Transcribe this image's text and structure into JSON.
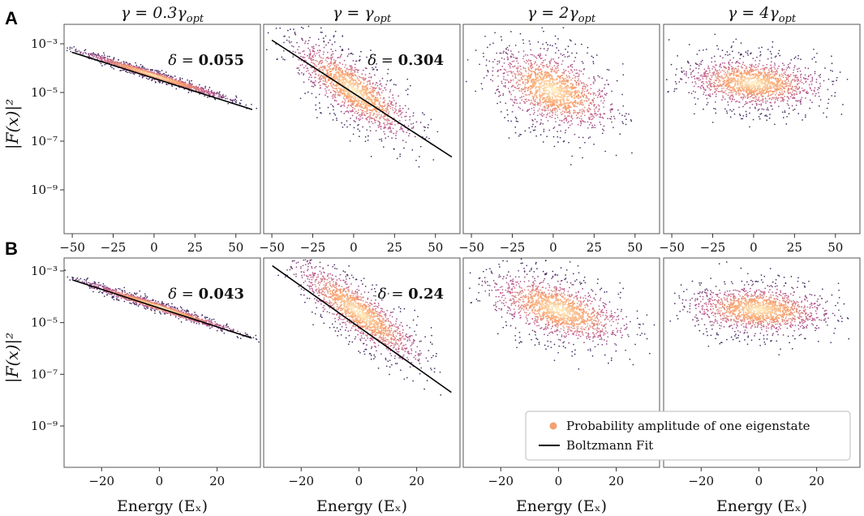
{
  "figure": {
    "column_titles": [
      "γ = 0.3γ",
      "γ = γ",
      "γ = 2γ",
      "γ = 4γ"
    ],
    "column_title_subscript": "opt",
    "row_labels": [
      "A",
      "B"
    ],
    "ylabel": "|F(x)|²",
    "xlabel": "Energy (Eₓ)",
    "legend": {
      "scatter": "Probability amplitude of one eigenstate",
      "fit": "Boltzmann Fit"
    },
    "colors": {
      "fit": "#000000",
      "scatter_core": "#fff3c4",
      "scatter_mid": "#f7a06e",
      "scatter_outer": "#b8558f",
      "scatter_edge": "#3b2a5e",
      "legend_marker": "#f4a070"
    }
  },
  "chart_data": [
    {
      "type": "scatter",
      "row": "A",
      "title": "γ = 0.3γopt",
      "xlabel": "",
      "ylabel": "|F(x)|²",
      "xlim": [
        -55,
        65
      ],
      "ylim_log10": [
        -10.8,
        -2.2
      ],
      "xticks": [
        -50,
        -25,
        0,
        25,
        50
      ],
      "xtick_labels": [
        "−50",
        "−25",
        "0",
        "25",
        "50"
      ],
      "yticks_log10": [
        -3,
        -5,
        -7,
        -9
      ],
      "ytick_labels": [
        "10⁻³",
        "10⁻⁵",
        "10⁻⁷",
        "10⁻⁹"
      ],
      "delta_label": "δ =",
      "delta": "0.055",
      "fit": {
        "x": [
          -50,
          60
        ],
        "log10y": [
          -3.35,
          -5.7
        ]
      },
      "cloud": {
        "center_x": 0,
        "center_log10y": -4.3,
        "sd_x": 20,
        "sd_log10y": 0.08,
        "slope": -0.021
      }
    },
    {
      "type": "scatter",
      "row": "A",
      "title": "γ = γopt",
      "xlabel": "",
      "ylabel": "",
      "xlim": [
        -55,
        65
      ],
      "ylim_log10": [
        -10.8,
        -2.2
      ],
      "xticks": [
        -50,
        -25,
        0,
        25,
        50
      ],
      "xtick_labels": [
        "−50",
        "−25",
        "0",
        "25",
        "50"
      ],
      "yticks_log10": [],
      "ytick_labels": [],
      "delta_label": "δ =",
      "delta": "0.304",
      "fit": {
        "x": [
          -50,
          60
        ],
        "log10y": [
          -2.85,
          -7.65
        ]
      },
      "cloud": {
        "center_x": 0,
        "center_log10y": -4.9,
        "sd_x": 17,
        "sd_log10y": 0.6,
        "slope": -0.042
      }
    },
    {
      "type": "scatter",
      "row": "A",
      "title": "γ = 2γopt",
      "xlabel": "",
      "ylabel": "",
      "xlim": [
        -55,
        65
      ],
      "ylim_log10": [
        -10.8,
        -2.2
      ],
      "xticks": [
        -50,
        -25,
        0,
        25,
        50
      ],
      "xtick_labels": [
        "−50",
        "−25",
        "0",
        "25",
        "50"
      ],
      "yticks_log10": [],
      "ytick_labels": [],
      "delta_label": "",
      "delta": "",
      "fit": null,
      "cloud": {
        "center_x": 0,
        "center_log10y": -4.9,
        "sd_x": 17,
        "sd_log10y": 0.75,
        "slope": -0.02
      }
    },
    {
      "type": "scatter",
      "row": "A",
      "title": "γ = 4γopt",
      "xlabel": "",
      "ylabel": "",
      "xlim": [
        -55,
        65
      ],
      "ylim_log10": [
        -10.8,
        -2.2
      ],
      "xticks": [
        -50,
        -25,
        0,
        25,
        50
      ],
      "xtick_labels": [
        "−50",
        "−25",
        "0",
        "25",
        "50"
      ],
      "yticks_log10": [],
      "ytick_labels": [],
      "delta_label": "",
      "delta": "",
      "fit": null,
      "cloud": {
        "center_x": 0,
        "center_log10y": -4.6,
        "sd_x": 19,
        "sd_log10y": 0.5,
        "slope": -0.004
      }
    },
    {
      "type": "scatter",
      "row": "B",
      "title": "",
      "xlabel": "Energy (Eₓ)",
      "ylabel": "|F(x)|²",
      "xlim": [
        -33,
        35
      ],
      "ylim_log10": [
        -10.6,
        -2.5
      ],
      "xticks": [
        -20,
        0,
        20
      ],
      "xtick_labels": [
        "−20",
        "0",
        "20"
      ],
      "yticks_log10": [
        -3,
        -5,
        -7,
        -9
      ],
      "ytick_labels": [
        "10⁻³",
        "10⁻⁵",
        "10⁻⁷",
        "10⁻⁹"
      ],
      "delta_label": "δ =",
      "delta": "0.043",
      "fit": {
        "x": [
          -30,
          32
        ],
        "log10y": [
          -3.35,
          -5.6
        ]
      },
      "cloud": {
        "center_x": 0,
        "center_log10y": -4.4,
        "sd_x": 12,
        "sd_log10y": 0.08,
        "slope": -0.036
      }
    },
    {
      "type": "scatter",
      "row": "B",
      "title": "",
      "xlabel": "Energy (Eₓ)",
      "ylabel": "",
      "xlim": [
        -33,
        35
      ],
      "ylim_log10": [
        -10.6,
        -2.5
      ],
      "xticks": [
        -20,
        0,
        20
      ],
      "xtick_labels": [
        "−20",
        "0",
        "20"
      ],
      "yticks_log10": [],
      "ytick_labels": [],
      "delta_label": "δ =",
      "delta": "0.24",
      "fit": {
        "x": [
          -30,
          32
        ],
        "log10y": [
          -2.8,
          -7.7
        ]
      },
      "cloud": {
        "center_x": 0,
        "center_log10y": -4.6,
        "sd_x": 10,
        "sd_log10y": 0.5,
        "slope": -0.075
      }
    },
    {
      "type": "scatter",
      "row": "B",
      "title": "",
      "xlabel": "Energy (Eₓ)",
      "ylabel": "",
      "xlim": [
        -33,
        35
      ],
      "ylim_log10": [
        -10.6,
        -2.5
      ],
      "xticks": [
        -20,
        0,
        20
      ],
      "xtick_labels": [
        "−20",
        "0",
        "20"
      ],
      "yticks_log10": [],
      "ytick_labels": [],
      "delta_label": "",
      "delta": "",
      "fit": null,
      "cloud": {
        "center_x": 0,
        "center_log10y": -4.5,
        "sd_x": 11,
        "sd_log10y": 0.55,
        "slope": -0.03
      }
    },
    {
      "type": "scatter",
      "row": "B",
      "title": "",
      "xlabel": "Energy (Eₓ)",
      "ylabel": "",
      "xlim": [
        -33,
        35
      ],
      "ylim_log10": [
        -10.6,
        -2.5
      ],
      "xticks": [
        -20,
        0,
        20
      ],
      "xtick_labels": [
        "−20",
        "0",
        "20"
      ],
      "yticks_log10": [],
      "ytick_labels": [],
      "delta_label": "",
      "delta": "",
      "fit": null,
      "cloud": {
        "center_x": 0,
        "center_log10y": -4.5,
        "sd_x": 11,
        "sd_log10y": 0.45,
        "slope": -0.005
      }
    }
  ]
}
